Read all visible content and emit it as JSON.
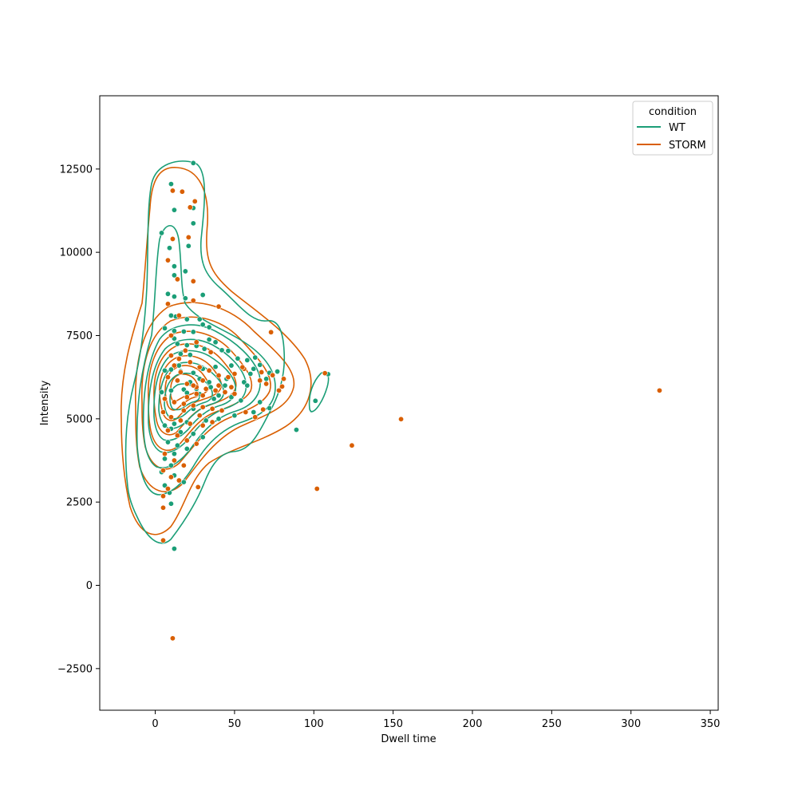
{
  "chart_data": {
    "type": "scatter",
    "xlabel": "Dwell time",
    "ylabel": "Intensity",
    "xlim": [
      -35,
      355
    ],
    "ylim": [
      -3750,
      14700
    ],
    "x_ticks": [
      0,
      50,
      100,
      150,
      200,
      250,
      300,
      350
    ],
    "y_ticks": [
      -2500,
      0,
      2500,
      5000,
      7500,
      10000,
      12500
    ],
    "grid": false,
    "overlay": "kde-contours",
    "legend": {
      "title": "condition",
      "placement": "top-right",
      "entries": [
        {
          "label": "WT",
          "color": "#1b9e77"
        },
        {
          "label": "STORM",
          "color": "#d95f02"
        }
      ]
    },
    "series": [
      {
        "name": "WT",
        "color": "#1b9e77",
        "points": [
          [
            10,
            12050
          ],
          [
            24,
            12680
          ],
          [
            12,
            11270
          ],
          [
            24,
            11330
          ],
          [
            24,
            10870
          ],
          [
            4,
            10580
          ],
          [
            9,
            10130
          ],
          [
            21,
            10190
          ],
          [
            12,
            9580
          ],
          [
            19,
            9430
          ],
          [
            12,
            9310
          ],
          [
            8,
            8750
          ],
          [
            12,
            8670
          ],
          [
            19,
            8620
          ],
          [
            30,
            8720
          ],
          [
            10,
            8100
          ],
          [
            13,
            8070
          ],
          [
            20,
            7990
          ],
          [
            28,
            7990
          ],
          [
            30,
            7830
          ],
          [
            34,
            7750
          ],
          [
            6,
            7720
          ],
          [
            12,
            7640
          ],
          [
            18,
            7620
          ],
          [
            24,
            7610
          ],
          [
            12,
            7410
          ],
          [
            34,
            7380
          ],
          [
            38,
            7300
          ],
          [
            14,
            7250
          ],
          [
            20,
            7210
          ],
          [
            26,
            7190
          ],
          [
            31,
            7100
          ],
          [
            42,
            7060
          ],
          [
            46,
            7040
          ],
          [
            16,
            6950
          ],
          [
            22,
            6920
          ],
          [
            52,
            6810
          ],
          [
            58,
            6760
          ],
          [
            63,
            6840
          ],
          [
            66,
            6620
          ],
          [
            48,
            6600
          ],
          [
            38,
            6560
          ],
          [
            30,
            6500
          ],
          [
            10,
            6480
          ],
          [
            6,
            6450
          ],
          [
            16,
            6430
          ],
          [
            24,
            6380
          ],
          [
            60,
            6350
          ],
          [
            72,
            6380
          ],
          [
            77,
            6420
          ],
          [
            70,
            6200
          ],
          [
            56,
            6100
          ],
          [
            44,
            6000
          ],
          [
            35,
            5950
          ],
          [
            26,
            5900
          ],
          [
            18,
            5880
          ],
          [
            10,
            5850
          ],
          [
            4,
            5800
          ],
          [
            20,
            5780
          ],
          [
            28,
            5740
          ],
          [
            40,
            5700
          ],
          [
            48,
            5650
          ],
          [
            54,
            5550
          ],
          [
            66,
            5500
          ],
          [
            72,
            5320
          ],
          [
            62,
            5200
          ],
          [
            50,
            5100
          ],
          [
            40,
            5000
          ],
          [
            32,
            4950
          ],
          [
            20,
            4900
          ],
          [
            12,
            4850
          ],
          [
            6,
            4800
          ],
          [
            10,
            4700
          ],
          [
            16,
            4600
          ],
          [
            24,
            4550
          ],
          [
            30,
            4450
          ],
          [
            8,
            4300
          ],
          [
            14,
            4200
          ],
          [
            20,
            4100
          ],
          [
            12,
            3950
          ],
          [
            6,
            3800
          ],
          [
            10,
            3600
          ],
          [
            4,
            3400
          ],
          [
            12,
            3300
          ],
          [
            18,
            3100
          ],
          [
            6,
            3000
          ],
          [
            9,
            2780
          ],
          [
            10,
            2450
          ],
          [
            12,
            1100
          ],
          [
            89,
            4670
          ],
          [
            101,
            5540
          ],
          [
            109,
            6340
          ],
          [
            62,
            6500
          ],
          [
            58,
            6000
          ],
          [
            45,
            6200
          ],
          [
            37,
            5600
          ],
          [
            28,
            6200
          ],
          [
            18,
            5450
          ],
          [
            24,
            5300
          ],
          [
            34,
            6100
          ],
          [
            15,
            6600
          ],
          [
            22,
            6100
          ]
        ]
      },
      {
        "name": "STORM",
        "color": "#d95f02",
        "points": [
          [
            11,
            11850
          ],
          [
            17,
            11820
          ],
          [
            25,
            11530
          ],
          [
            22,
            11350
          ],
          [
            11,
            10400
          ],
          [
            21,
            10450
          ],
          [
            8,
            9760
          ],
          [
            14,
            9190
          ],
          [
            24,
            9130
          ],
          [
            8,
            8450
          ],
          [
            40,
            8370
          ],
          [
            24,
            8550
          ],
          [
            73,
            7600
          ],
          [
            66,
            6150
          ],
          [
            78,
            5850
          ],
          [
            80,
            5970
          ],
          [
            68,
            5280
          ],
          [
            74,
            6310
          ],
          [
            81,
            6200
          ],
          [
            63,
            5050
          ],
          [
            57,
            5200
          ],
          [
            56,
            6500
          ],
          [
            67,
            6400
          ],
          [
            70,
            6050
          ],
          [
            10,
            6900
          ],
          [
            15,
            6800
          ],
          [
            22,
            6700
          ],
          [
            28,
            6550
          ],
          [
            34,
            6450
          ],
          [
            40,
            6300
          ],
          [
            46,
            6250
          ],
          [
            50,
            6350
          ],
          [
            8,
            6250
          ],
          [
            14,
            6150
          ],
          [
            20,
            6050
          ],
          [
            26,
            5950
          ],
          [
            32,
            5900
          ],
          [
            38,
            5850
          ],
          [
            44,
            5800
          ],
          [
            50,
            5750
          ],
          [
            6,
            5600
          ],
          [
            12,
            5500
          ],
          [
            18,
            5450
          ],
          [
            24,
            5400
          ],
          [
            30,
            5350
          ],
          [
            36,
            5300
          ],
          [
            42,
            5250
          ],
          [
            20,
            5650
          ],
          [
            26,
            5750
          ],
          [
            16,
            6400
          ],
          [
            30,
            6150
          ],
          [
            5,
            5200
          ],
          [
            10,
            5050
          ],
          [
            16,
            4950
          ],
          [
            22,
            4850
          ],
          [
            30,
            4800
          ],
          [
            36,
            4900
          ],
          [
            8,
            4650
          ],
          [
            14,
            4500
          ],
          [
            20,
            4350
          ],
          [
            26,
            4250
          ],
          [
            6,
            3950
          ],
          [
            12,
            3750
          ],
          [
            18,
            3600
          ],
          [
            5,
            3450
          ],
          [
            10,
            3250
          ],
          [
            15,
            3150
          ],
          [
            8,
            2900
          ],
          [
            5,
            2680
          ],
          [
            5,
            2330
          ],
          [
            27,
            2950
          ],
          [
            5,
            1350
          ],
          [
            11,
            -1590
          ],
          [
            102,
            2900
          ],
          [
            124,
            4200
          ],
          [
            155,
            4990
          ],
          [
            107,
            6370
          ],
          [
            318,
            5850
          ],
          [
            24,
            6000
          ],
          [
            30,
            5700
          ],
          [
            12,
            6600
          ],
          [
            19,
            7050
          ],
          [
            26,
            7300
          ],
          [
            40,
            6000
          ],
          [
            48,
            5950
          ],
          [
            55,
            6550
          ],
          [
            35,
            7000
          ],
          [
            18,
            5250
          ],
          [
            28,
            5100
          ],
          [
            10,
            7500
          ],
          [
            15,
            8100
          ]
        ]
      }
    ]
  }
}
